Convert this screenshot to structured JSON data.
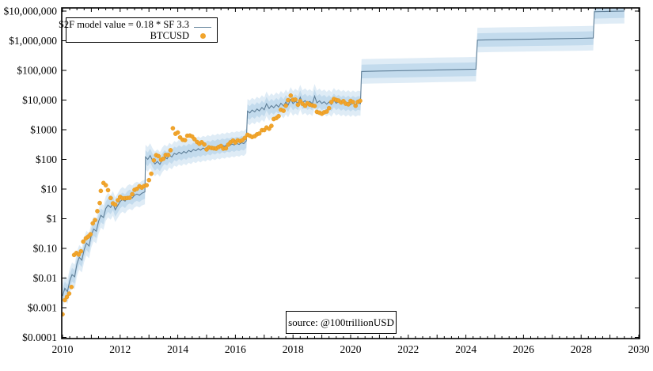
{
  "colors": {
    "model_line": "#5f7f98",
    "band_inner": "#c3dbed",
    "band_outer": "#dfecf6",
    "btc_dot": "#f1a42c",
    "btc_dot_edge": "#e09314",
    "axis": "#000000",
    "background": "#ffffff"
  },
  "legend": {
    "items": [
      {
        "label": "S2F model value = 0.18 * SF 3.3",
        "symbol": "line"
      },
      {
        "label": "BTCUSD",
        "symbol": "dot"
      }
    ]
  },
  "source": {
    "text": "source: @100trillionUSD"
  },
  "chart_data": {
    "type": "line",
    "title": "",
    "xlabel": "",
    "ylabel": "",
    "grid": false,
    "legend_position": "top-left",
    "x_axis": {
      "min": 2010,
      "max": 2030,
      "labeled_ticks": [
        2010,
        2012,
        2014,
        2016,
        2018,
        2020,
        2022,
        2024,
        2026,
        2028,
        2030
      ],
      "labels": [
        "2010",
        "2012",
        "2014",
        "2016",
        "2018",
        "2020",
        "2022",
        "2024",
        "2026",
        "2028",
        "2030"
      ],
      "year_tick_step": 1,
      "minor_tick_step": 0.25
    },
    "y_axis": {
      "scale": "log",
      "min": 0.0001,
      "max": 10000000,
      "tick_values": [
        10000000,
        1000000,
        100000,
        10000,
        1000,
        100,
        10,
        1,
        0.1,
        0.01,
        0.001,
        0.0001
      ],
      "labels": [
        "$10,000,000",
        "$1,000,000",
        "$100,000",
        "$10,000",
        "$1000",
        "$100",
        "$10",
        "$1",
        "$0.10",
        "$0.01",
        "$0.001",
        "$0.0001"
      ]
    },
    "series": [
      {
        "name": "S2F model value = 0.18 * SF 3.3",
        "type": "line",
        "color": "#5f7f98",
        "band": {
          "inner_mult": 1.7,
          "outer_mult": 2.6,
          "inner_color": "#c3dbed",
          "outer_color": "#dfecf6"
        },
        "halving_steps": [
          2012.87,
          2016.4,
          2020.36,
          2024.37,
          2028.43
        ],
        "points": [
          [
            2010.0,
            0.0025
          ],
          [
            2010.08,
            0.0045
          ],
          [
            2010.17,
            0.0035
          ],
          [
            2010.25,
            0.008
          ],
          [
            2010.33,
            0.013
          ],
          [
            2010.42,
            0.011
          ],
          [
            2010.5,
            0.03
          ],
          [
            2010.58,
            0.05
          ],
          [
            2010.67,
            0.04
          ],
          [
            2010.75,
            0.09
          ],
          [
            2010.83,
            0.15
          ],
          [
            2010.92,
            0.12
          ],
          [
            2011.0,
            0.28
          ],
          [
            2011.08,
            0.45
          ],
          [
            2011.17,
            0.38
          ],
          [
            2011.25,
            0.8
          ],
          [
            2011.33,
            1.3
          ],
          [
            2011.42,
            1.1
          ],
          [
            2011.5,
            2.2
          ],
          [
            2011.58,
            2.9
          ],
          [
            2011.67,
            2.4
          ],
          [
            2011.75,
            3.3
          ],
          [
            2011.83,
            2.0
          ],
          [
            2011.92,
            2.8
          ],
          [
            2012.0,
            3.8
          ],
          [
            2012.08,
            4.5
          ],
          [
            2012.17,
            3.9
          ],
          [
            2012.25,
            5.0
          ],
          [
            2012.33,
            5.6
          ],
          [
            2012.42,
            5.0
          ],
          [
            2012.5,
            6.2
          ],
          [
            2012.58,
            6.8
          ],
          [
            2012.67,
            6.2
          ],
          [
            2012.75,
            7.2
          ],
          [
            2012.83,
            7.8
          ],
          [
            2012.86,
            8.0
          ],
          [
            2012.88,
            120
          ],
          [
            2012.96,
            100
          ],
          [
            2013.04,
            135
          ],
          [
            2013.13,
            90
          ],
          [
            2013.21,
            70
          ],
          [
            2013.29,
            85
          ],
          [
            2013.38,
            68
          ],
          [
            2013.46,
            95
          ],
          [
            2013.54,
            120
          ],
          [
            2013.63,
            105
          ],
          [
            2013.71,
            140
          ],
          [
            2013.79,
            120
          ],
          [
            2013.88,
            160
          ],
          [
            2013.96,
            145
          ],
          [
            2014.04,
            175
          ],
          [
            2014.13,
            155
          ],
          [
            2014.21,
            185
          ],
          [
            2014.29,
            165
          ],
          [
            2014.38,
            200
          ],
          [
            2014.46,
            180
          ],
          [
            2014.54,
            215
          ],
          [
            2014.63,
            195
          ],
          [
            2014.71,
            230
          ],
          [
            2014.79,
            205
          ],
          [
            2014.88,
            240
          ],
          [
            2014.96,
            220
          ],
          [
            2015.04,
            255
          ],
          [
            2015.13,
            230
          ],
          [
            2015.21,
            270
          ],
          [
            2015.29,
            245
          ],
          [
            2015.38,
            285
          ],
          [
            2015.46,
            260
          ],
          [
            2015.54,
            300
          ],
          [
            2015.63,
            275
          ],
          [
            2015.71,
            315
          ],
          [
            2015.79,
            290
          ],
          [
            2015.88,
            330
          ],
          [
            2015.96,
            305
          ],
          [
            2016.04,
            345
          ],
          [
            2016.13,
            320
          ],
          [
            2016.21,
            365
          ],
          [
            2016.29,
            340
          ],
          [
            2016.38,
            420
          ],
          [
            2016.42,
            4200
          ],
          [
            2016.5,
            3700
          ],
          [
            2016.58,
            4600
          ],
          [
            2016.67,
            4000
          ],
          [
            2016.75,
            5000
          ],
          [
            2016.83,
            4300
          ],
          [
            2016.92,
            5600
          ],
          [
            2017.0,
            4700
          ],
          [
            2017.08,
            7500
          ],
          [
            2017.17,
            5200
          ],
          [
            2017.25,
            6500
          ],
          [
            2017.33,
            5500
          ],
          [
            2017.42,
            7000
          ],
          [
            2017.5,
            5800
          ],
          [
            2017.58,
            7800
          ],
          [
            2017.67,
            6300
          ],
          [
            2017.75,
            8600
          ],
          [
            2017.83,
            6800
          ],
          [
            2017.92,
            10500
          ],
          [
            2018.0,
            7600
          ],
          [
            2018.08,
            9200
          ],
          [
            2018.17,
            7800
          ],
          [
            2018.25,
            12500
          ],
          [
            2018.33,
            8200
          ],
          [
            2018.42,
            9600
          ],
          [
            2018.5,
            7900
          ],
          [
            2018.58,
            9000
          ],
          [
            2018.67,
            7500
          ],
          [
            2018.75,
            13500
          ],
          [
            2018.83,
            8000
          ],
          [
            2018.92,
            9400
          ],
          [
            2019.0,
            7700
          ],
          [
            2019.08,
            8800
          ],
          [
            2019.17,
            7300
          ],
          [
            2019.25,
            8600
          ],
          [
            2019.33,
            7100
          ],
          [
            2019.42,
            9800
          ],
          [
            2019.5,
            7800
          ],
          [
            2019.58,
            8900
          ],
          [
            2019.67,
            7400
          ],
          [
            2019.75,
            8500
          ],
          [
            2019.83,
            7200
          ],
          [
            2019.92,
            8300
          ],
          [
            2020.0,
            7000
          ],
          [
            2020.08,
            8200
          ],
          [
            2020.17,
            7100
          ],
          [
            2020.25,
            8000
          ],
          [
            2020.34,
            7600
          ],
          [
            2020.38,
            92000
          ],
          [
            2021.0,
            95000
          ],
          [
            2022.0,
            99000
          ],
          [
            2023.0,
            104000
          ],
          [
            2024.0,
            108000
          ],
          [
            2024.35,
            110000
          ],
          [
            2024.4,
            1050000
          ],
          [
            2025.0,
            1080000
          ],
          [
            2026.0,
            1120000
          ],
          [
            2027.0,
            1160000
          ],
          [
            2028.0,
            1200000
          ],
          [
            2028.42,
            1230000
          ],
          [
            2028.46,
            9500000
          ],
          [
            2029.0,
            9800000
          ],
          [
            2029.5,
            10000000
          ]
        ]
      },
      {
        "name": "BTCUSD",
        "type": "scatter",
        "color": "#f1a42c",
        "radius": 2.6,
        "points": [
          [
            2010.0,
            0.0006
          ],
          [
            2010.08,
            0.0018
          ],
          [
            2010.15,
            0.0023
          ],
          [
            2010.23,
            0.003
          ],
          [
            2010.31,
            0.005
          ],
          [
            2010.4,
            0.06
          ],
          [
            2010.48,
            0.07
          ],
          [
            2010.56,
            0.062
          ],
          [
            2010.64,
            0.08
          ],
          [
            2010.72,
            0.17
          ],
          [
            2010.81,
            0.22
          ],
          [
            2010.89,
            0.25
          ],
          [
            2010.97,
            0.3
          ],
          [
            2011.05,
            0.7
          ],
          [
            2011.13,
            0.9
          ],
          [
            2011.21,
            1.8
          ],
          [
            2011.29,
            3.4
          ],
          [
            2011.33,
            8.7
          ],
          [
            2011.42,
            16
          ],
          [
            2011.5,
            13.5
          ],
          [
            2011.58,
            9.2
          ],
          [
            2011.67,
            5.0
          ],
          [
            2011.75,
            3.3
          ],
          [
            2011.83,
            3.0
          ],
          [
            2011.92,
            4.2
          ],
          [
            2012.0,
            5.4
          ],
          [
            2012.08,
            4.9
          ],
          [
            2012.17,
            4.9
          ],
          [
            2012.25,
            5.0
          ],
          [
            2012.33,
            5.1
          ],
          [
            2012.42,
            6.7
          ],
          [
            2012.5,
            9.4
          ],
          [
            2012.58,
            10.2
          ],
          [
            2012.67,
            12.4
          ],
          [
            2012.75,
            11.2
          ],
          [
            2012.83,
            12.6
          ],
          [
            2012.92,
            13.5
          ],
          [
            2013.0,
            20
          ],
          [
            2013.08,
            33
          ],
          [
            2013.17,
            93
          ],
          [
            2013.25,
            139
          ],
          [
            2013.33,
            129
          ],
          [
            2013.42,
            97
          ],
          [
            2013.5,
            106
          ],
          [
            2013.58,
            141
          ],
          [
            2013.67,
            141
          ],
          [
            2013.75,
            204
          ],
          [
            2013.83,
            1127
          ],
          [
            2013.92,
            732
          ],
          [
            2014.0,
            806
          ],
          [
            2014.08,
            550
          ],
          [
            2014.17,
            458
          ],
          [
            2014.25,
            446
          ],
          [
            2014.33,
            627
          ],
          [
            2014.42,
            635
          ],
          [
            2014.5,
            589
          ],
          [
            2014.58,
            481
          ],
          [
            2014.67,
            387
          ],
          [
            2014.75,
            338
          ],
          [
            2014.83,
            378
          ],
          [
            2014.92,
            320
          ],
          [
            2015.0,
            217
          ],
          [
            2015.08,
            254
          ],
          [
            2015.17,
            244
          ],
          [
            2015.25,
            236
          ],
          [
            2015.33,
            230
          ],
          [
            2015.42,
            263
          ],
          [
            2015.5,
            284
          ],
          [
            2015.58,
            230
          ],
          [
            2015.67,
            236
          ],
          [
            2015.75,
            314
          ],
          [
            2015.83,
            377
          ],
          [
            2015.92,
            430
          ],
          [
            2016.0,
            369
          ],
          [
            2016.08,
            437
          ],
          [
            2016.17,
            416
          ],
          [
            2016.25,
            448
          ],
          [
            2016.33,
            531
          ],
          [
            2016.42,
            673
          ],
          [
            2016.5,
            624
          ],
          [
            2016.58,
            573
          ],
          [
            2016.67,
            610
          ],
          [
            2016.75,
            700
          ],
          [
            2016.83,
            745
          ],
          [
            2016.92,
            964
          ],
          [
            2017.0,
            970
          ],
          [
            2017.08,
            1190
          ],
          [
            2017.17,
            1080
          ],
          [
            2017.25,
            1347
          ],
          [
            2017.33,
            2286
          ],
          [
            2017.42,
            2480
          ],
          [
            2017.5,
            2875
          ],
          [
            2017.58,
            4703
          ],
          [
            2017.67,
            4360
          ],
          [
            2017.75,
            6468
          ],
          [
            2017.83,
            9916
          ],
          [
            2017.92,
            14156
          ],
          [
            2018.0,
            10221
          ],
          [
            2018.08,
            10397
          ],
          [
            2018.17,
            6973
          ],
          [
            2018.25,
            9240
          ],
          [
            2018.33,
            7494
          ],
          [
            2018.42,
            6404
          ],
          [
            2018.5,
            7780
          ],
          [
            2018.58,
            7037
          ],
          [
            2018.67,
            6625
          ],
          [
            2018.75,
            6317
          ],
          [
            2018.83,
            4017
          ],
          [
            2018.92,
            3742
          ],
          [
            2019.0,
            3457
          ],
          [
            2019.08,
            3854
          ],
          [
            2019.17,
            4105
          ],
          [
            2019.25,
            5350
          ],
          [
            2019.33,
            8574
          ],
          [
            2019.42,
            10817
          ],
          [
            2019.5,
            10085
          ],
          [
            2019.58,
            9630
          ],
          [
            2019.67,
            8308
          ],
          [
            2019.75,
            9199
          ],
          [
            2019.83,
            7569
          ],
          [
            2019.92,
            7193
          ],
          [
            2020.0,
            9350
          ],
          [
            2020.08,
            8599
          ],
          [
            2020.17,
            6438
          ],
          [
            2020.25,
            8658
          ],
          [
            2020.33,
            9461
          ]
        ]
      }
    ]
  }
}
